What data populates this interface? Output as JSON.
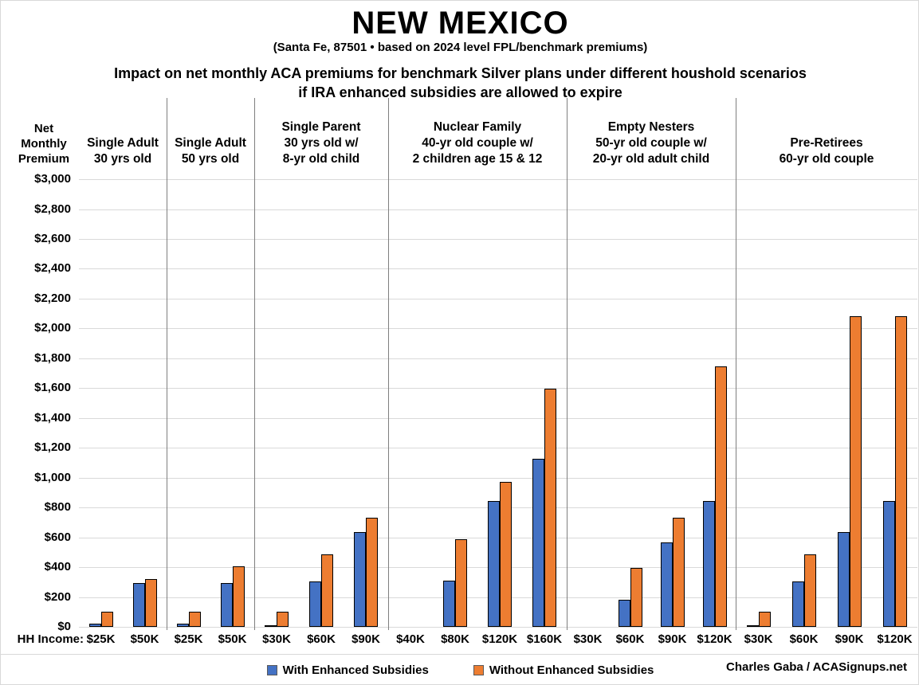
{
  "chart_data": {
    "type": "bar",
    "title": "NEW MEXICO",
    "location_note": "(Santa Fe, 87501 • based on 2024 level FPL/benchmark premiums)",
    "heading_line1": "Impact on net monthly ACA premiums for benchmark Silver plans under different houshold scenarios",
    "heading_line2": "if IRA enhanced subsidies are allowed to expire",
    "ylabel_lines": [
      "Net",
      "Monthly",
      "Premium"
    ],
    "ylim": [
      0,
      3000
    ],
    "ytick_step": 200,
    "ytick_labels": [
      "$0",
      "$200",
      "$400",
      "$600",
      "$800",
      "$1,000",
      "$1,200",
      "$1,400",
      "$1,600",
      "$1,800",
      "$2,000",
      "$2,200",
      "$2,400",
      "$2,600",
      "$2,800",
      "$3,000"
    ],
    "grid": true,
    "legend_position": "bottom",
    "x_axis_prefix": "HH Income:",
    "legend": [
      {
        "name": "With Enhanced Subsidies",
        "color": "#4472C4"
      },
      {
        "name": "Without Enhanced Subsidies",
        "color": "#ED7D31"
      }
    ],
    "groups": [
      {
        "label_lines": [
          "Single Adult",
          "30 yrs old"
        ],
        "categories": [
          "$25K",
          "$50K"
        ],
        "series": [
          {
            "name": "With Enhanced Subsidies",
            "values": [
              20,
              293
            ]
          },
          {
            "name": "Without Enhanced Subsidies",
            "values": [
              101,
              320
            ]
          }
        ]
      },
      {
        "label_lines": [
          "Single Adult",
          "50 yrs old"
        ],
        "categories": [
          "$25K",
          "$50K"
        ],
        "series": [
          {
            "name": "With Enhanced Subsidies",
            "values": [
              20,
              293
            ]
          },
          {
            "name": "Without Enhanced Subsidies",
            "values": [
              101,
              406
            ]
          }
        ]
      },
      {
        "label_lines": [
          "Single Parent",
          "30 yrs old w/",
          "8-yr old child"
        ],
        "categories": [
          "$30K",
          "$60K",
          "$90K"
        ],
        "series": [
          {
            "name": "With Enhanced Subsidies",
            "values": [
              5,
              303,
              634
            ]
          },
          {
            "name": "Without Enhanced Subsidies",
            "values": [
              101,
              488,
              730
            ]
          }
        ]
      },
      {
        "label_lines": [
          "Nuclear Family",
          "40-yr old couple w/",
          "2 children age 15 & 12"
        ],
        "categories": [
          "$40K",
          "$80K",
          "$120K",
          "$160K"
        ],
        "series": [
          {
            "name": "With Enhanced Subsidies",
            "values": [
              0,
              308,
              845,
              1128
            ]
          },
          {
            "name": "Without Enhanced Subsidies",
            "values": [
              0,
              588,
              973,
              1594
            ]
          }
        ]
      },
      {
        "label_lines": [
          "Empty Nesters",
          "50-yr old couple w/",
          "20-yr old adult child"
        ],
        "categories": [
          "$30K",
          "$60K",
          "$90K",
          "$120K"
        ],
        "series": [
          {
            "name": "With Enhanced Subsidies",
            "values": [
              0,
              184,
              565,
              845
            ]
          },
          {
            "name": "Without Enhanced Subsidies",
            "values": [
              0,
              394,
              730,
              1743
            ]
          }
        ]
      },
      {
        "label_lines": [
          "Pre-Retirees",
          "60-yr old couple"
        ],
        "categories": [
          "$30K",
          "$60K",
          "$90K",
          "$120K"
        ],
        "series": [
          {
            "name": "With Enhanced Subsidies",
            "values": [
              5,
              303,
              634,
              845
            ]
          },
          {
            "name": "Without Enhanced Subsidies",
            "values": [
              101,
              488,
              2084,
              2084
            ]
          }
        ]
      }
    ],
    "credit": "Charles Gaba / ACASignups.net"
  }
}
